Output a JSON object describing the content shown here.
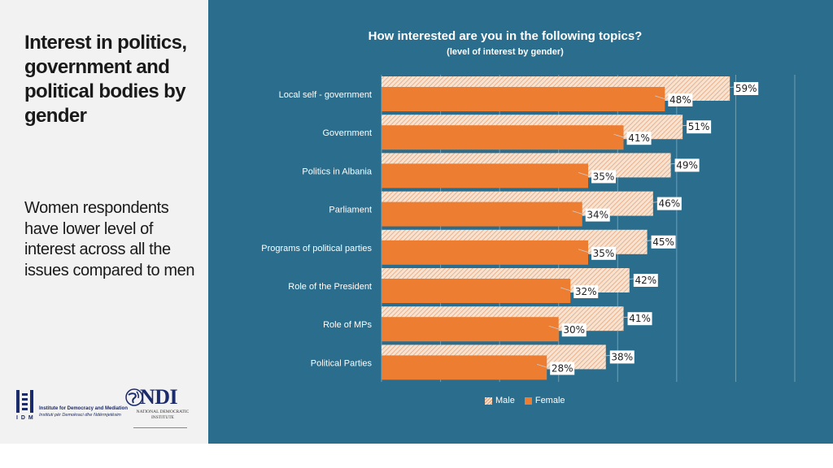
{
  "slide": {
    "heading": "Interest in politics, government and political bodies by gender",
    "subtext": "Women respondents have lower level of interest across all the issues compared to men"
  },
  "logos": {
    "idm": {
      "name": "idm-logo",
      "letters": "I D M",
      "line1": "Institute for Democracy and Mediation",
      "line2": "Instituti për Demokraci dhe Ndërmjetësim"
    },
    "ndi": {
      "name": "ndi-logo",
      "letters": "NDI",
      "sub": "NATIONAL DEMOCRATIC INSTITUTE"
    }
  },
  "chart_data": {
    "type": "bar",
    "orientation": "horizontal",
    "title": "How interested are you in the following topics?",
    "subtitle": "(level of interest by gender)",
    "categories": [
      "Local self - government",
      "Government",
      "Politics in Albania",
      "Parliament",
      "Programs of political parties",
      "Role of the President",
      "Role of MPs",
      "Political Parties"
    ],
    "series": [
      {
        "name": "Male",
        "values": [
          59,
          51,
          49,
          46,
          45,
          42,
          41,
          38
        ]
      },
      {
        "name": "Female",
        "values": [
          48,
          41,
          35,
          34,
          35,
          32,
          30,
          28
        ]
      }
    ],
    "value_suffix": "%",
    "xlim": [
      0,
      70
    ],
    "grid": true,
    "legend": "bottom",
    "colors": {
      "male_fill": "#f7e3d2",
      "male_hatch": "#e8a57a",
      "female": "#ed7d31",
      "background": "#2b6d8c",
      "grid": "#6f9fb6"
    }
  }
}
